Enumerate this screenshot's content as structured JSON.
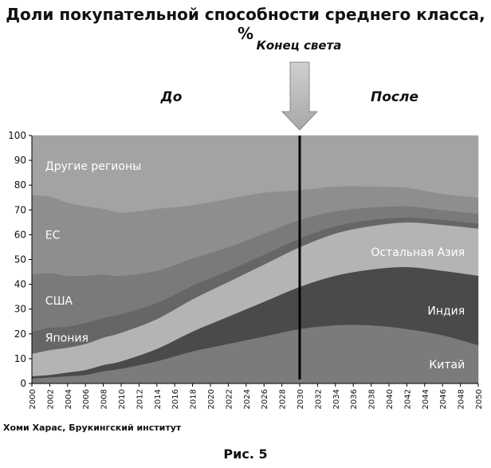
{
  "title": "Доли покупательной способности среднего класса, %",
  "marker_label": "Конец света",
  "before_label": "До",
  "after_label": "После",
  "source": "Хоми Харас, Брукингский институт",
  "caption": "Рис. 5",
  "colors": {
    "china": "#7b7b7b",
    "india": "#4a4a4a",
    "other_asia": "#b4b4b4",
    "japan": "#666666",
    "usa": "#7a7a7a",
    "eu": "#8e8e8e",
    "other": "#a3a3a3",
    "arrow": "#a8a8a8",
    "marker_line": "#000000"
  },
  "chart_data": {
    "type": "area",
    "stacked": true,
    "xlim": [
      2000,
      2050
    ],
    "ylim": [
      0,
      100
    ],
    "grid": false,
    "x_ticks": [
      "2000",
      "2002",
      "2004",
      "2006",
      "2008",
      "2010",
      "2012",
      "2014",
      "2016",
      "2018",
      "2020",
      "2022",
      "2024",
      "2026",
      "2028",
      "2030",
      "2032",
      "2034",
      "2036",
      "2038",
      "2040",
      "2042",
      "2044",
      "2046",
      "2048",
      "2050"
    ],
    "y_ticks": [
      "0",
      "10",
      "20",
      "30",
      "40",
      "50",
      "60",
      "70",
      "80",
      "90",
      "100"
    ],
    "marker_x": 2030,
    "x": [
      2000,
      2002,
      2004,
      2006,
      2008,
      2010,
      2014,
      2018,
      2022,
      2026,
      2030,
      2034,
      2038,
      2042,
      2046,
      2050
    ],
    "series": [
      {
        "key": "china",
        "name": "Китай",
        "values": [
          2,
          2.5,
          3,
          3.5,
          5,
          6,
          9,
          13,
          16,
          19,
          22,
          23.5,
          23.5,
          22,
          19.5,
          15.5
        ]
      },
      {
        "key": "india",
        "name": "Индия",
        "values": [
          1,
          1,
          1.5,
          2,
          2.5,
          3,
          5,
          8,
          11,
          14,
          17,
          20,
          22.5,
          25,
          26,
          28
        ]
      },
      {
        "key": "other_asia",
        "name": "Остальная Азия",
        "values": [
          9,
          10,
          10,
          10.5,
          11,
          11.5,
          12,
          13,
          14,
          15,
          16,
          17,
          17.5,
          18,
          18.5,
          19
        ]
      },
      {
        "key": "japan",
        "name": "Япония",
        "values": [
          9,
          9,
          8.5,
          8.5,
          8,
          7.5,
          6.5,
          5.5,
          4.5,
          4,
          3.5,
          3,
          2.5,
          2,
          2,
          2
        ]
      },
      {
        "key": "usa",
        "name": "США",
        "values": [
          23,
          22,
          20.5,
          19,
          17.5,
          15.5,
          13,
          11,
          9.5,
          8.5,
          7.5,
          6,
          5,
          4.5,
          4,
          4
        ]
      },
      {
        "key": "eu",
        "name": "ЕС",
        "values": [
          32,
          31,
          29.5,
          28,
          26.5,
          25.5,
          25,
          21.5,
          19.5,
          16.5,
          12,
          10,
          8.5,
          7.5,
          6.5,
          6.5
        ]
      },
      {
        "key": "other",
        "name": "Другие регионы",
        "values": [
          24,
          24.5,
          27,
          28.5,
          29.5,
          31,
          29.5,
          28,
          25.5,
          23,
          22,
          20.5,
          20.5,
          21,
          23.5,
          25
        ]
      }
    ]
  }
}
